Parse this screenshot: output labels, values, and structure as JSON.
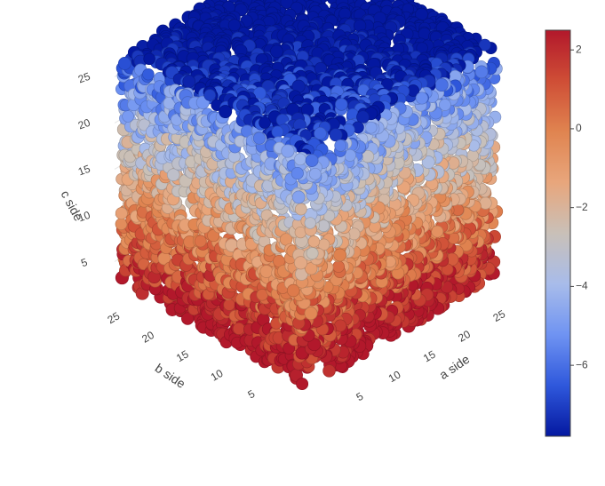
{
  "chart_data": {
    "type": "scatter3d",
    "title": "",
    "axes": {
      "x": {
        "label": "a side",
        "range": [
          0,
          28
        ],
        "ticks": [
          5,
          10,
          15,
          20,
          25
        ]
      },
      "y": {
        "label": "b side",
        "range": [
          0,
          28
        ],
        "ticks": [
          5,
          10,
          15,
          20,
          25
        ]
      },
      "z": {
        "label": "c side",
        "range": [
          2,
          28
        ],
        "ticks": [
          5,
          10,
          15,
          20,
          25
        ]
      }
    },
    "colorscale": {
      "name": "coolwarm",
      "colors": [
        "#0418a0",
        "#2f58dc",
        "#6f93f2",
        "#a8bcea",
        "#c9c0b8",
        "#e8a67c",
        "#e08450",
        "#cf4e36",
        "#b2182b"
      ],
      "range": [
        -7.8,
        2.5
      ],
      "ticks": [
        2,
        0,
        -2,
        -4,
        -6
      ],
      "tick_labels": [
        "2",
        "0",
        "−2",
        "−4",
        "−6"
      ]
    },
    "points_description": "Dense cube of spheres filling a≈[0,28], b≈[0,28], c≈[2,28]; values are high (red) near the bottom front corner and low (blue) toward the top.",
    "sample_points": [
      {
        "a": 2,
        "b": 2,
        "c": 3,
        "value": 2.1
      },
      {
        "a": 5,
        "b": 5,
        "c": 5,
        "value": 1.4
      },
      {
        "a": 10,
        "b": 10,
        "c": 8,
        "value": 0.2
      },
      {
        "a": 15,
        "b": 15,
        "c": 12,
        "value": -1.5
      },
      {
        "a": 20,
        "b": 20,
        "c": 18,
        "value": -3.6
      },
      {
        "a": 25,
        "b": 25,
        "c": 25,
        "value": -5.8
      }
    ]
  }
}
